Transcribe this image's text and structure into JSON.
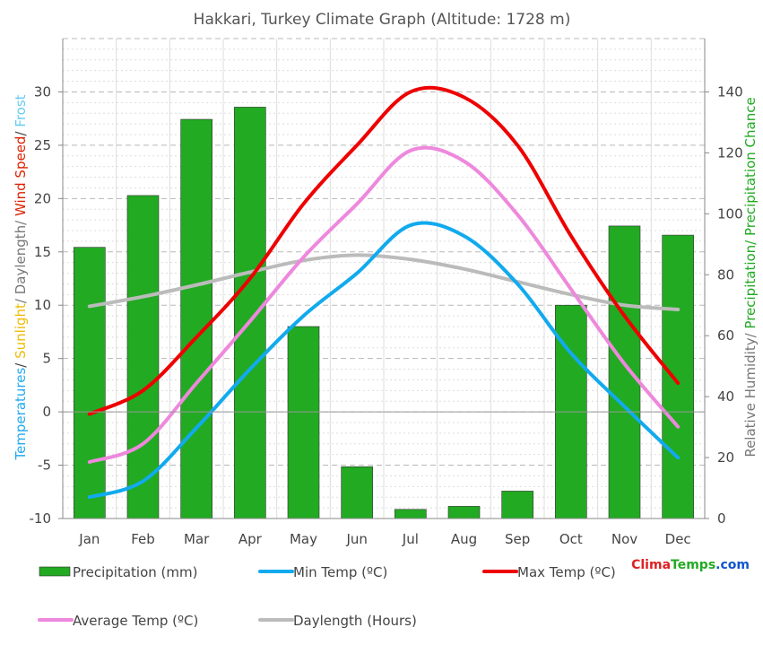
{
  "colors": {
    "precipitation": "#22aa22",
    "min_temp": "#11aaee",
    "max_temp": "#ee0000",
    "avg_temp": "#ee88dd",
    "daylength": "#bbbbbb",
    "temperatures": "#22aaee",
    "sunlight": "#eebb00",
    "wind": "#dd2200",
    "frost": "#66ccee",
    "humidity_text": "#777777",
    "precip_text": "#22aa22",
    "text": "#444444"
  },
  "brand": {
    "clima": "Clima",
    "temps": "Temps",
    ".com": ".com"
  },
  "chart_data": {
    "type": "bar",
    "title": "Hakkari, Turkey Climate Graph (Altitude: 1728 m)",
    "categories": [
      "Jan",
      "Feb",
      "Mar",
      "Apr",
      "May",
      "Jun",
      "Jul",
      "Aug",
      "Sep",
      "Oct",
      "Nov",
      "Dec"
    ],
    "left_axis": {
      "ylim": [
        -10,
        35
      ],
      "ticks": [
        -10,
        -5,
        0,
        5,
        10,
        15,
        20,
        25,
        30
      ],
      "label_parts": [
        {
          "text": "Temperatures",
          "color_key": "temperatures"
        },
        {
          "text": "/ ",
          "color_key": "text"
        },
        {
          "text": "Sunlight",
          "color_key": "sunlight"
        },
        {
          "text": "/ Daylength/ ",
          "color_key": "humidity_text"
        },
        {
          "text": "Wind Speed",
          "color_key": "wind"
        },
        {
          "text": "/ ",
          "color_key": "text"
        },
        {
          "text": "Frost",
          "color_key": "frost"
        }
      ]
    },
    "right_axis": {
      "ylim": [
        0,
        157.5
      ],
      "ticks": [
        0,
        20,
        40,
        60,
        80,
        100,
        120,
        140
      ],
      "label_parts": [
        {
          "text": "Relative Humidity/ ",
          "color_key": "humidity_text"
        },
        {
          "text": "Precipitation/ Precipitation Chance",
          "color_key": "precip_text"
        }
      ]
    },
    "grid": true,
    "series": [
      {
        "name": "Precipitation (mm)",
        "kind": "bar",
        "axis": "right",
        "color_key": "precipitation",
        "values": [
          89,
          106,
          131,
          135,
          63,
          17,
          3,
          4,
          9,
          70,
          96,
          93
        ]
      },
      {
        "name": "Min Temp (ºC)",
        "kind": "line",
        "axis": "left",
        "color_key": "min_temp",
        "values": [
          -8.0,
          -6.5,
          -1.5,
          4.0,
          9.0,
          13.0,
          17.5,
          16.5,
          12.0,
          5.5,
          0.5,
          -4.3
        ]
      },
      {
        "name": "Max Temp (ºC)",
        "kind": "line",
        "axis": "left",
        "color_key": "max_temp",
        "values": [
          -0.2,
          2.0,
          7.0,
          12.5,
          19.5,
          25.0,
          30.0,
          29.5,
          25.0,
          16.5,
          9.0,
          2.7
        ]
      },
      {
        "name": "Average Temp (ºC)",
        "kind": "line",
        "axis": "left",
        "color_key": "avg_temp",
        "values": [
          -4.7,
          -3.0,
          2.7,
          8.5,
          14.5,
          19.5,
          24.5,
          23.5,
          18.5,
          11.5,
          4.5,
          -1.4
        ]
      },
      {
        "name": "Daylength (Hours)",
        "kind": "line",
        "axis": "left",
        "color_key": "daylength",
        "values": [
          9.9,
          10.8,
          11.9,
          13.1,
          14.2,
          14.7,
          14.3,
          13.4,
          12.2,
          11.0,
          10.0,
          9.6
        ]
      }
    ]
  }
}
